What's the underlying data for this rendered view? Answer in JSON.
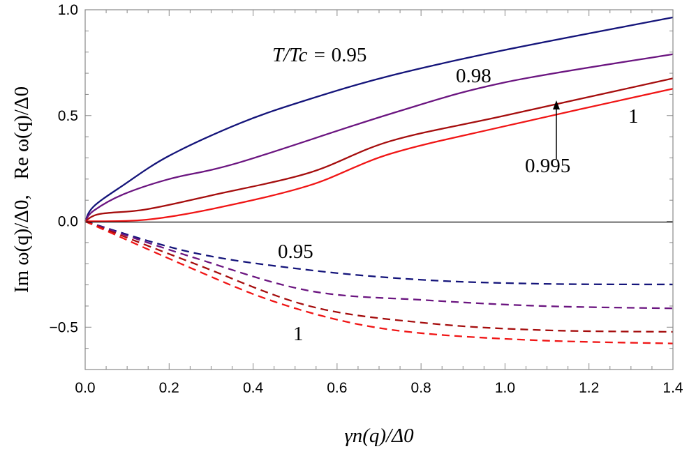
{
  "chart_data": {
    "type": "line",
    "xlabel": "γn(q)/Δ0",
    "ylabel": "Im ω(q)/Δ0,   Re ω(q)/Δ0",
    "xlim": [
      0,
      1.4
    ],
    "ylim": [
      -0.7,
      1.0
    ],
    "x_ticks": [
      "0.0",
      "0.2",
      "0.4",
      "0.6",
      "0.8",
      "1.0",
      "1.2",
      "1.4"
    ],
    "y_ticks": [
      "-0.5",
      "0.0",
      "0.5",
      "1.0"
    ],
    "grid": false,
    "legend": "none",
    "series": [
      {
        "group": "Re",
        "T_over_Tc": "0.95",
        "color": "#14147a",
        "style": "solid",
        "x": [
          0,
          0.02,
          0.09,
          0.2,
          0.37,
          0.53,
          0.73,
          1.0,
          1.4
        ],
        "y": [
          0,
          0.07,
          0.17,
          0.31,
          0.465,
          0.575,
          0.69,
          0.81,
          0.964
        ]
      },
      {
        "group": "Re",
        "T_over_Tc": "0.98",
        "color": "#6b1580",
        "style": "solid",
        "x": [
          0,
          0.02,
          0.09,
          0.2,
          0.37,
          0.73,
          1.0,
          1.4
        ],
        "y": [
          0,
          0.05,
          0.127,
          0.2,
          0.28,
          0.51,
          0.657,
          0.79
        ]
      },
      {
        "group": "Re",
        "T_over_Tc": "0.995",
        "color": "#a50d0d",
        "style": "solid",
        "x": [
          0,
          0.035,
          0.146,
          0.31,
          0.534,
          0.728,
          1.0,
          1.4
        ],
        "y": [
          0,
          0.035,
          0.057,
          0.127,
          0.23,
          0.38,
          0.5,
          0.676
        ]
      },
      {
        "group": "Re",
        "T_over_Tc": "1",
        "color": "#f01515",
        "style": "solid",
        "x": [
          0,
          0.146,
          0.31,
          0.534,
          0.728,
          1.0,
          1.4
        ],
        "y": [
          0,
          0.008,
          0.062,
          0.17,
          0.32,
          0.45,
          0.627
        ]
      },
      {
        "group": "Im",
        "T_over_Tc": "0.95",
        "color": "#14147a",
        "style": "dashed",
        "x": [
          0,
          0.257,
          0.534,
          0.81,
          1.09,
          1.4
        ],
        "y": [
          0,
          -0.148,
          -0.23,
          -0.277,
          -0.295,
          -0.298
        ]
      },
      {
        "group": "Im",
        "T_over_Tc": "0.98",
        "color": "#6b1580",
        "style": "dashed",
        "x": [
          0,
          0.257,
          0.534,
          0.81,
          1.09,
          1.4
        ],
        "y": [
          0,
          -0.17,
          -0.328,
          -0.372,
          -0.4,
          -0.411
        ]
      },
      {
        "group": "Im",
        "T_over_Tc": "0.995",
        "color": "#a50d0d",
        "style": "dashed",
        "x": [
          0,
          0.257,
          0.534,
          0.81,
          1.09,
          1.4
        ],
        "y": [
          0,
          -0.197,
          -0.4,
          -0.48,
          -0.514,
          -0.522
        ]
      },
      {
        "group": "Im",
        "T_over_Tc": "1",
        "color": "#f01515",
        "style": "dashed",
        "x": [
          0,
          0.257,
          0.44,
          0.626,
          0.81,
          1.09,
          1.4
        ],
        "y": [
          0,
          -0.225,
          -0.372,
          -0.476,
          -0.53,
          -0.563,
          -0.577
        ]
      }
    ],
    "annotations": {
      "re_095_prefix": "T/Tc = ",
      "re_095": "0.95",
      "re_098": "0.98",
      "re_0995": "0.995",
      "re_1": "1",
      "im_095": "0.95",
      "im_1": "1"
    }
  }
}
